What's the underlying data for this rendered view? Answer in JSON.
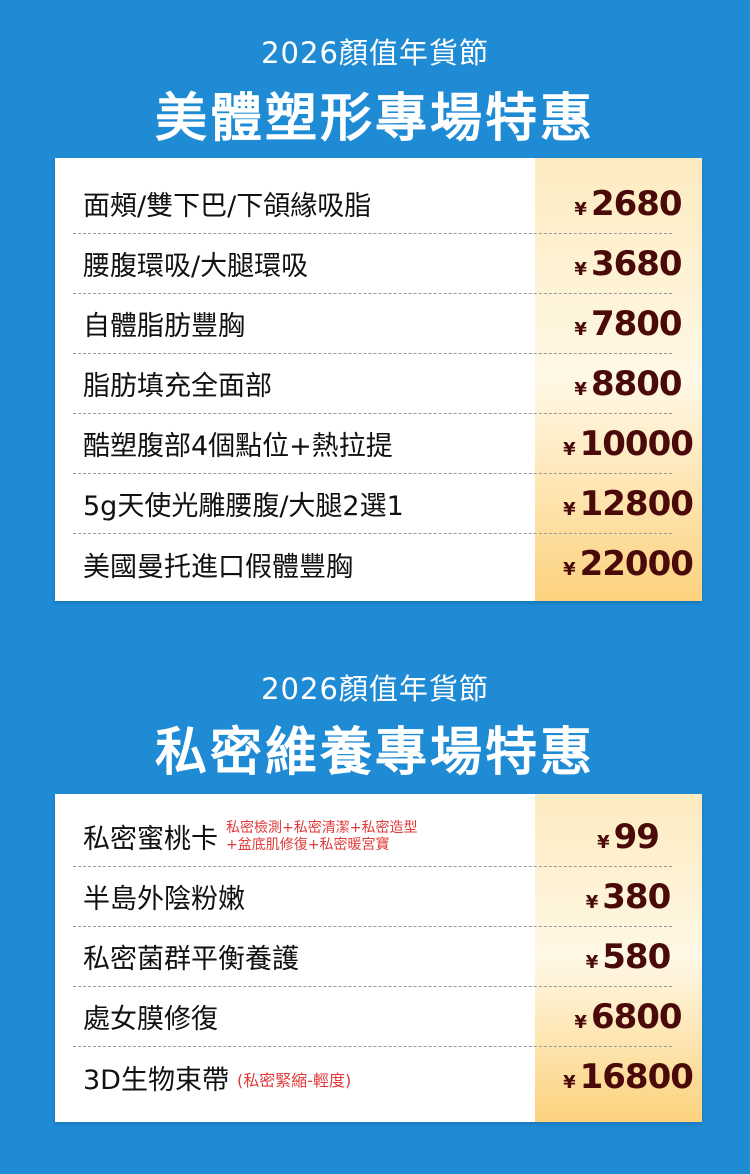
{
  "colors": {
    "background": "#1f8bd5",
    "price": "#4a0a0a",
    "note": "#e03a3a"
  },
  "sections": [
    {
      "subtitle": "2026顏值年貨節",
      "title": "美體塑形專場特惠",
      "items": [
        {
          "name": "面頰/雙下巴/下頜緣吸脂",
          "currency": "¥",
          "price": "2680"
        },
        {
          "name": "腰腹環吸/大腿環吸",
          "currency": "¥",
          "price": "3680"
        },
        {
          "name": "自體脂肪豐胸",
          "currency": "¥",
          "price": "7800"
        },
        {
          "name": "脂肪填充全面部",
          "currency": "¥",
          "price": "8800"
        },
        {
          "name": "酷塑腹部4個點位+熱拉提",
          "currency": "¥",
          "price": "10000"
        },
        {
          "name": "5g天使光雕腰腹/大腿2選1",
          "currency": "¥",
          "price": "12800"
        },
        {
          "name": "美國曼托進口假體豐胸",
          "currency": "¥",
          "price": "22000"
        }
      ]
    },
    {
      "subtitle": "2026顏值年貨節",
      "title": "私密維養專場特惠",
      "items": [
        {
          "name": "私密蜜桃卡",
          "note": [
            "私密檢測+私密清潔+私密造型",
            "+盆底肌修復+私密暖宮寶"
          ],
          "currency": "¥",
          "price": "99"
        },
        {
          "name": "半島外陰粉嫩",
          "currency": "¥",
          "price": "380"
        },
        {
          "name": "私密菌群平衡養護",
          "currency": "¥",
          "price": "580"
        },
        {
          "name": "處女膜修復",
          "currency": "¥",
          "price": "6800"
        },
        {
          "name": "3D生物束帶",
          "note": [
            "(私密緊縮-輕度)"
          ],
          "currency": "¥",
          "price": "16800"
        }
      ]
    }
  ]
}
